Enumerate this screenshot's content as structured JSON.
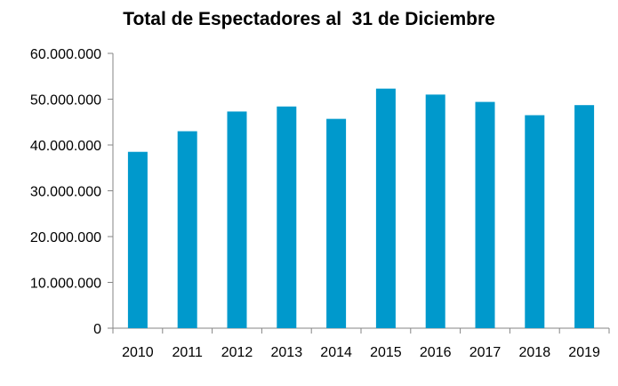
{
  "chart_data": {
    "type": "bar",
    "title": "Total de Espectadores al  31 de Diciembre",
    "xlabel": "",
    "ylabel": "",
    "categories": [
      "2010",
      "2011",
      "2012",
      "2013",
      "2014",
      "2015",
      "2016",
      "2017",
      "2018",
      "2019"
    ],
    "values": [
      38500000,
      43000000,
      47300000,
      48400000,
      45700000,
      52300000,
      51000000,
      49400000,
      46500000,
      48700000
    ],
    "ylim": [
      0,
      60000000
    ],
    "yticks": [
      0,
      10000000,
      20000000,
      30000000,
      40000000,
      50000000,
      60000000
    ],
    "ytick_labels": [
      "0",
      "10.000.000",
      "20.000.000",
      "30.000.000",
      "40.000.000",
      "50.000.000",
      "60.000.000"
    ],
    "grid": false,
    "legend": "none",
    "colors": {
      "bar": "#0099cc",
      "axis": "#868686"
    }
  }
}
